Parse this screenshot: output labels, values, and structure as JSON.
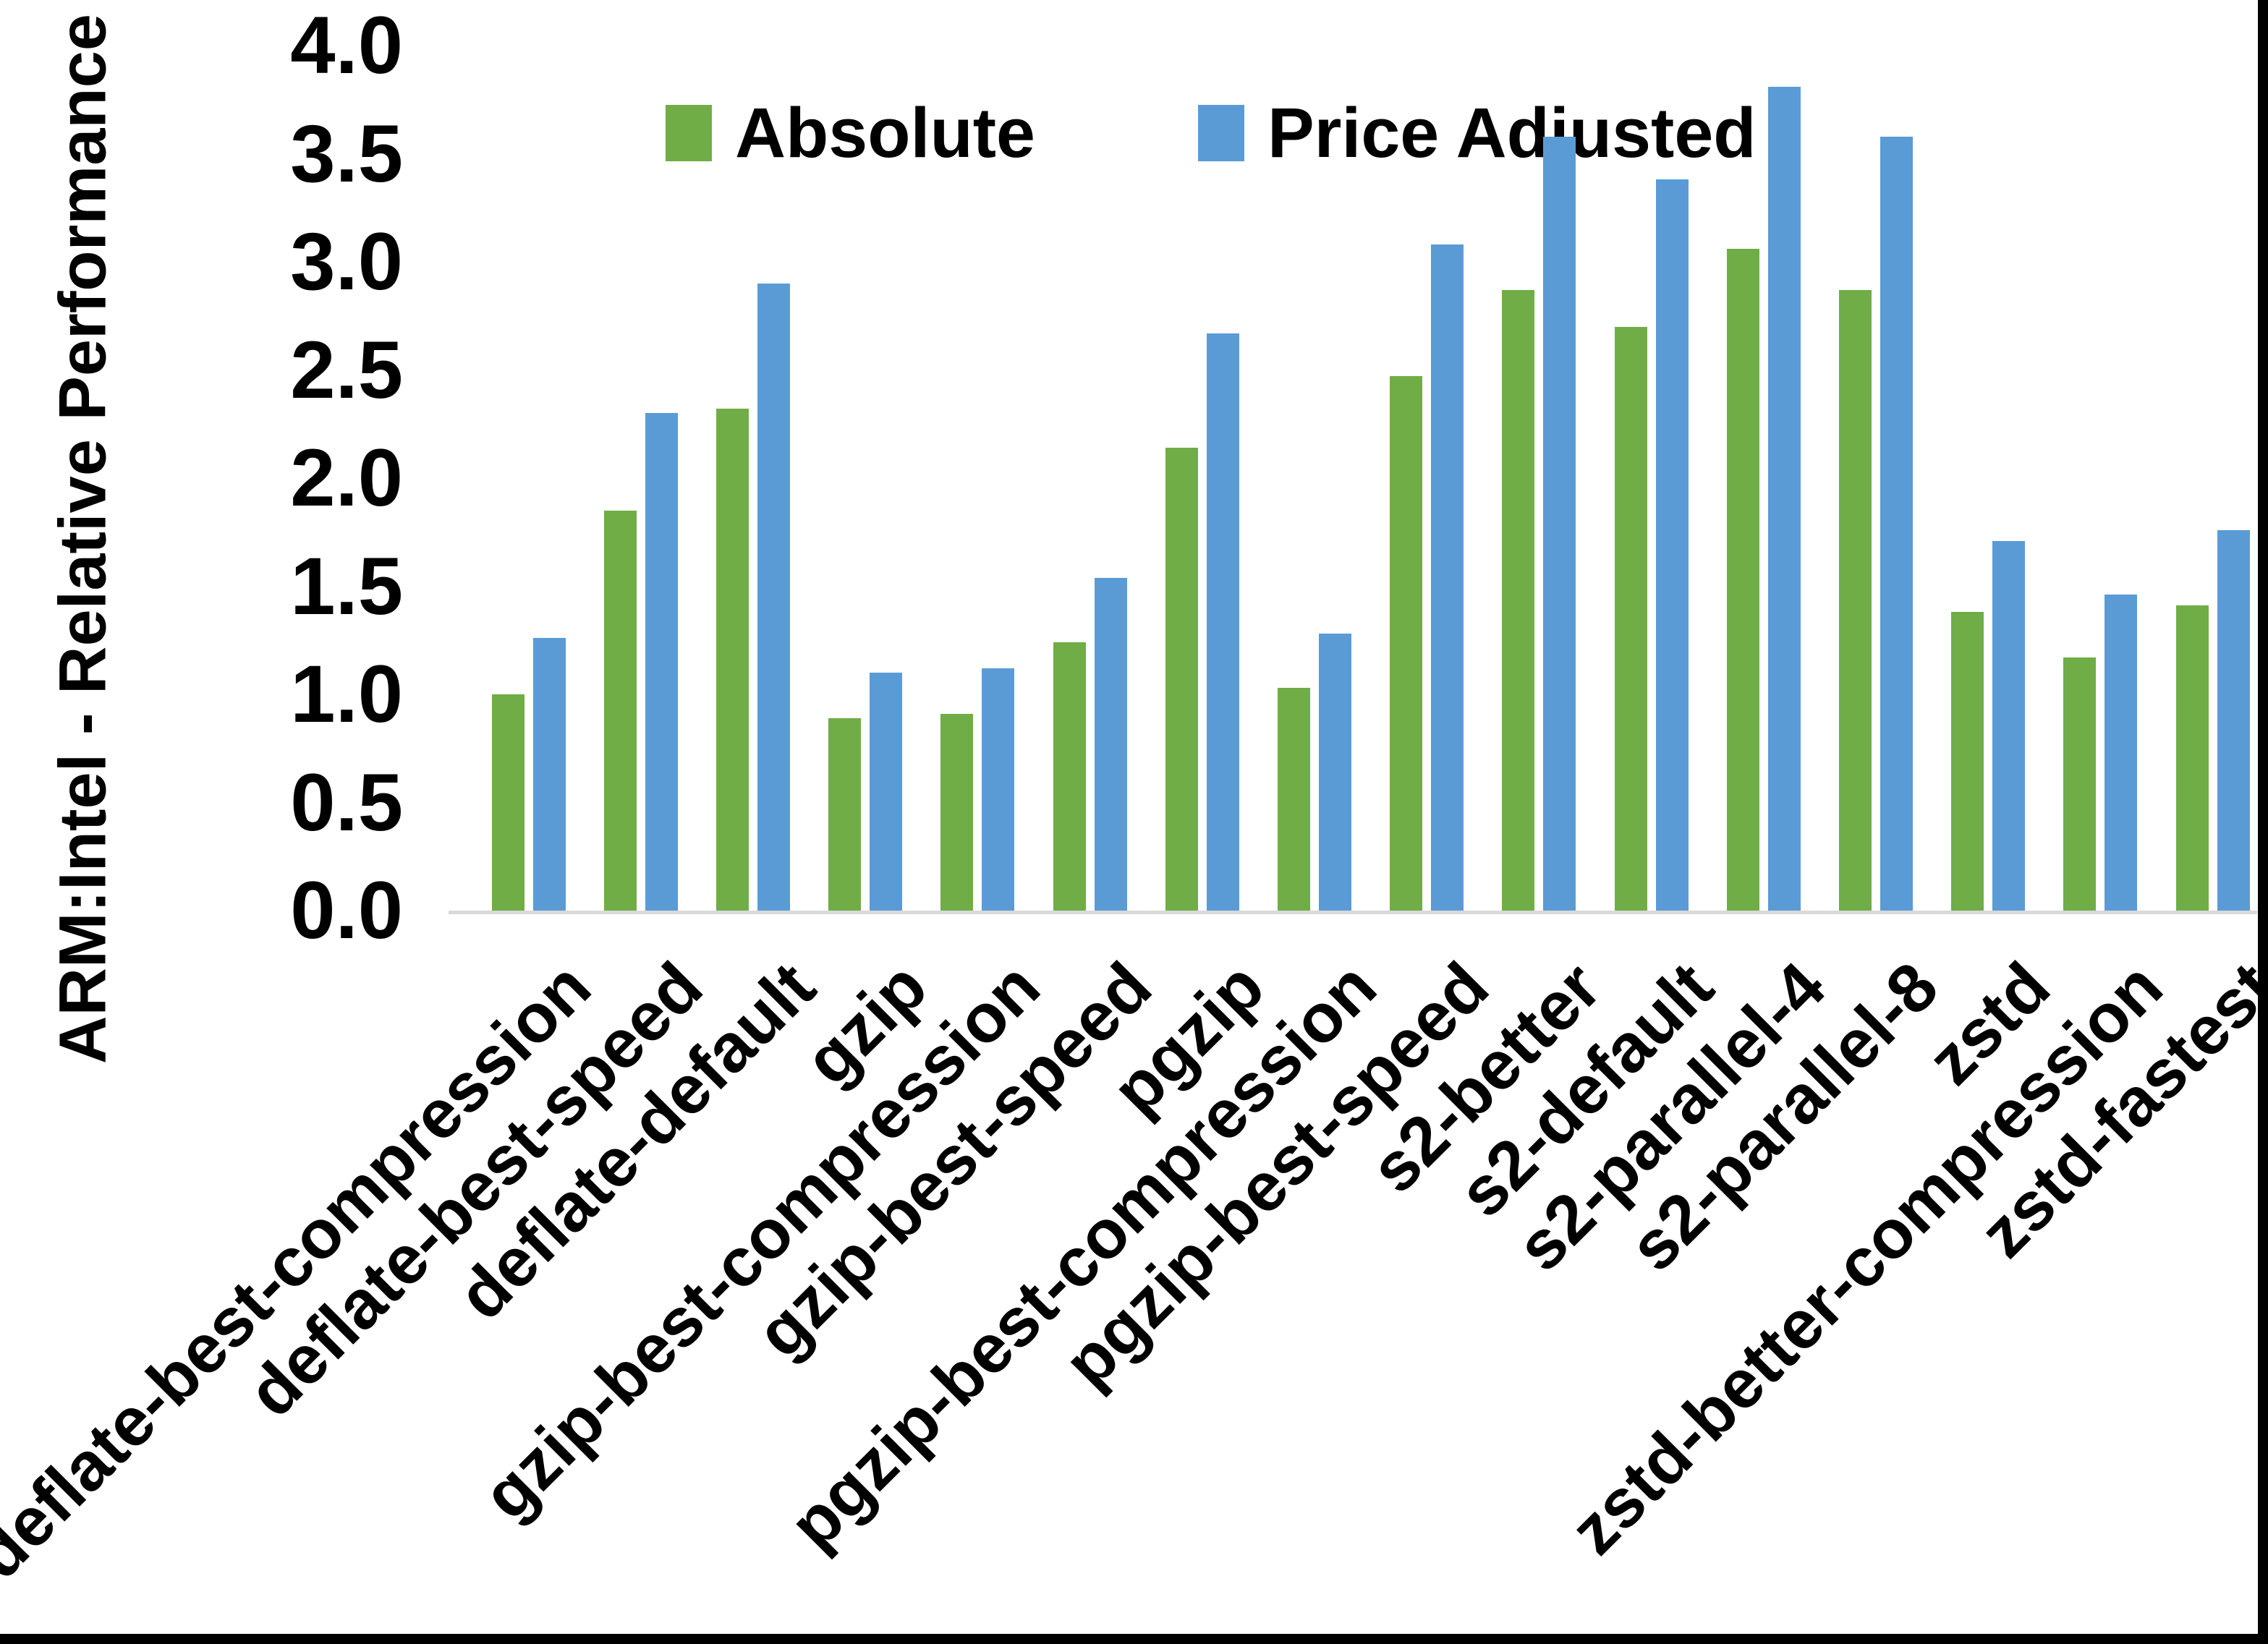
{
  "chart_data": {
    "type": "bar",
    "title": "",
    "xlabel": "",
    "ylabel": "ARM:Intel - Relative Performance",
    "ylim": [
      0.0,
      4.0
    ],
    "ytick_step": 0.5,
    "yticks": [
      "0.0",
      "0.5",
      "1.0",
      "1.5",
      "2.0",
      "2.5",
      "3.0",
      "3.5",
      "4.0"
    ],
    "grid": false,
    "legend_position": "top-center",
    "axis_line_color": "#d9d9d9",
    "categories": [
      "deflate-best-compression",
      "deflate-best-speed",
      "deflate-default",
      "gzip",
      "gzip-best-compression",
      "gzip-best-speed",
      "pgzip",
      "pgzip-best-compression",
      "pgzip-best-speed",
      "s2-better",
      "s2-default",
      "s2-parallel-4",
      "s2-parallel-8",
      "zstd",
      "zstd-better-compression",
      "zstd-fastest"
    ],
    "series": [
      {
        "name": "Absolute",
        "color": "#70AD47",
        "values": [
          1.0,
          1.85,
          2.32,
          0.89,
          0.91,
          1.24,
          2.14,
          1.03,
          2.47,
          2.87,
          2.7,
          3.06,
          2.87,
          1.38,
          1.17,
          1.41
        ]
      },
      {
        "name": "Price Adjusted",
        "color": "#5B9BD5",
        "values": [
          1.26,
          2.3,
          2.9,
          1.1,
          1.12,
          1.54,
          2.67,
          1.28,
          3.08,
          3.58,
          3.38,
          3.81,
          3.58,
          1.71,
          1.46,
          1.76
        ]
      }
    ]
  }
}
